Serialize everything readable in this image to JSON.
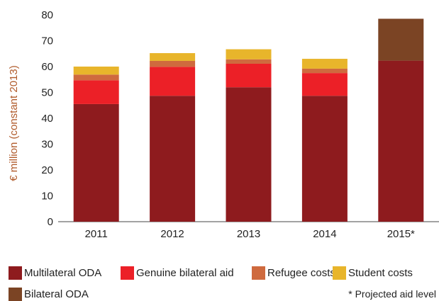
{
  "chart_data": {
    "type": "bar",
    "stacked": true,
    "ylabel": "€ million (constant 2013)",
    "xlabel": "",
    "ylim": [
      0,
      80
    ],
    "yticks": [
      "0",
      "10",
      "20",
      "30",
      "40",
      "50",
      "60",
      "70",
      "80"
    ],
    "categories": [
      "2011",
      "2012",
      "2013",
      "2014",
      "2015*"
    ],
    "series": [
      {
        "name": "Multilateral ODA",
        "color": "#8e1b1e",
        "values": [
          45.5,
          48.7,
          52.0,
          48.7,
          62.3
        ]
      },
      {
        "name": "Genuine bilateral aid",
        "color": "#ec2027",
        "values": [
          9.2,
          11.2,
          9.1,
          8.8,
          0
        ]
      },
      {
        "name": "Refugee costs",
        "color": "#cf6a3e",
        "values": [
          2.2,
          2.3,
          1.7,
          1.7,
          0
        ]
      },
      {
        "name": "Student costs",
        "color": "#e8b52b",
        "values": [
          3.1,
          3.0,
          3.9,
          3.8,
          0
        ]
      },
      {
        "name": "Bilateral ODA",
        "color": "#7b4424",
        "values": [
          0,
          0,
          0,
          0,
          16.2
        ]
      }
    ],
    "grid": false,
    "legend_position": "bottom",
    "annotation": "* Projected aid level"
  }
}
